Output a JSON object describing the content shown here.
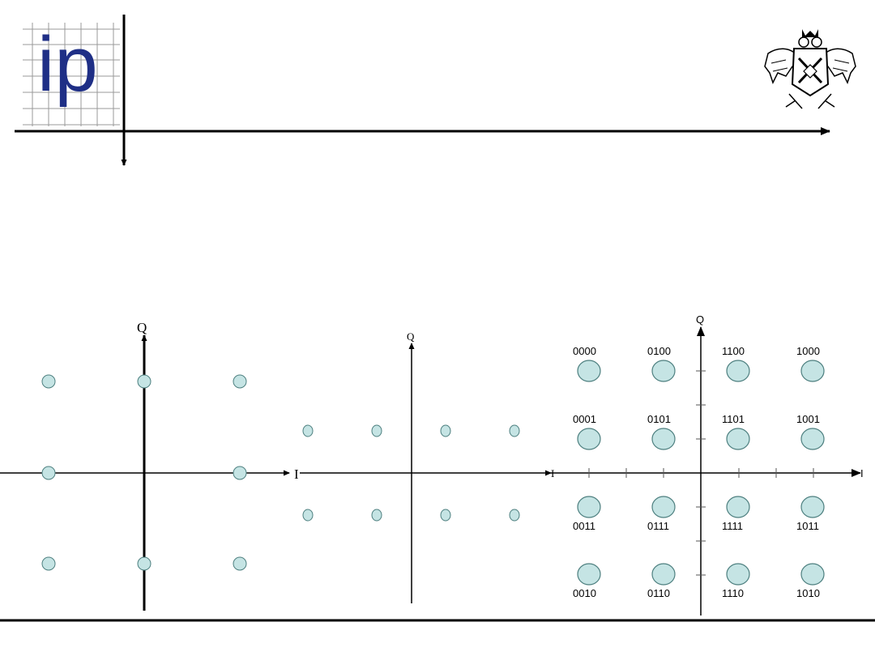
{
  "header": {
    "logo_text": "ip",
    "crest_icon": "eagle-crest-icon"
  },
  "diagram1": {
    "axis_label_i": "I",
    "axis_label_q": "Q",
    "grid": "3x3",
    "center_point": false
  },
  "diagram2": {
    "axis_label_i": "I",
    "axis_label_q": "Q",
    "grid": "4x2"
  },
  "diagram3": {
    "axis_label_i": "I",
    "axis_label_q": "Q",
    "rows": [
      [
        "0000",
        "0100",
        "1100",
        "1000"
      ],
      [
        "0001",
        "0101",
        "1101",
        "1001"
      ],
      [
        "0011",
        "0111",
        "1111",
        "1011"
      ],
      [
        "0010",
        "0110",
        "1110",
        "1010"
      ]
    ]
  },
  "colors": {
    "point_fill": "#c5e4e4",
    "point_stroke": "#4d7f7f",
    "line": "#000000",
    "logo_blue": "#1f2f86",
    "logo_grid": "#9a9a9a"
  }
}
